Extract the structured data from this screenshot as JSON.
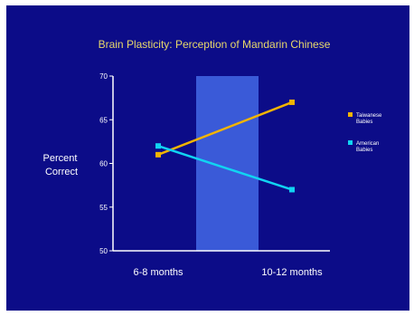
{
  "chart_data": {
    "type": "line",
    "title": "Brain Plasticity:  Perception of Mandarin Chinese",
    "ylabel_lines": [
      "Percent",
      "Correct"
    ],
    "xlabel": "",
    "categories": [
      "6-8 months",
      "10-12 months"
    ],
    "ylim": [
      50,
      70
    ],
    "yticks": [
      50,
      55,
      60,
      65,
      70
    ],
    "grid": false,
    "legend_position": "right",
    "highlight_band": {
      "from_category": 0,
      "to_category": 1,
      "color": "#3a5ad8"
    },
    "series": [
      {
        "name_lines": [
          "Taiwanese",
          "Babies"
        ],
        "values": [
          61,
          67
        ],
        "color": "#f2b400"
      },
      {
        "name_lines": [
          "American",
          "Babies"
        ],
        "values": [
          62,
          57
        ],
        "color": "#11d4f2"
      }
    ],
    "colors": {
      "background": "#0c0c88",
      "plot": "#0c0c88",
      "axes": "#ffffff"
    }
  }
}
